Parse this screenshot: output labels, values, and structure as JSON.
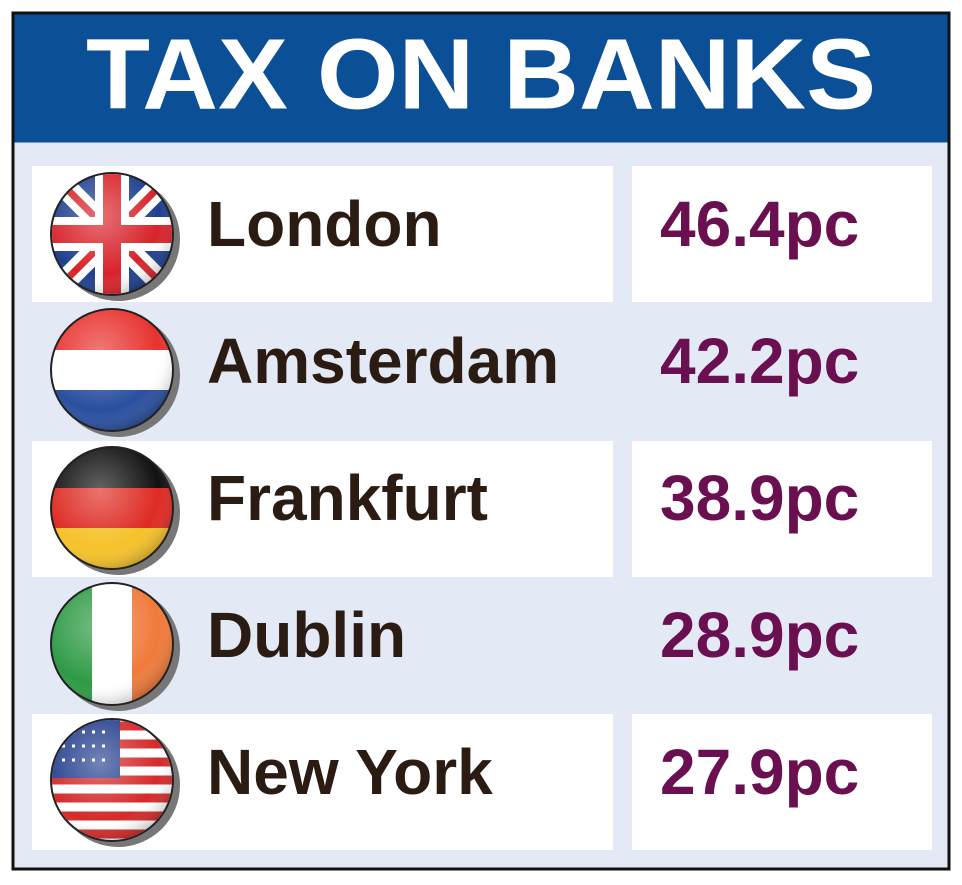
{
  "header": {
    "title": "TAX ON BANKS"
  },
  "table": {
    "rows": [
      [
        "London",
        "46.4pc"
      ],
      [
        "Amsterdam",
        "42.2pc"
      ],
      [
        "Frankfurt",
        "38.9pc"
      ],
      [
        "Dublin",
        "28.9pc"
      ],
      [
        "New York",
        "27.9pc"
      ]
    ]
  }
}
